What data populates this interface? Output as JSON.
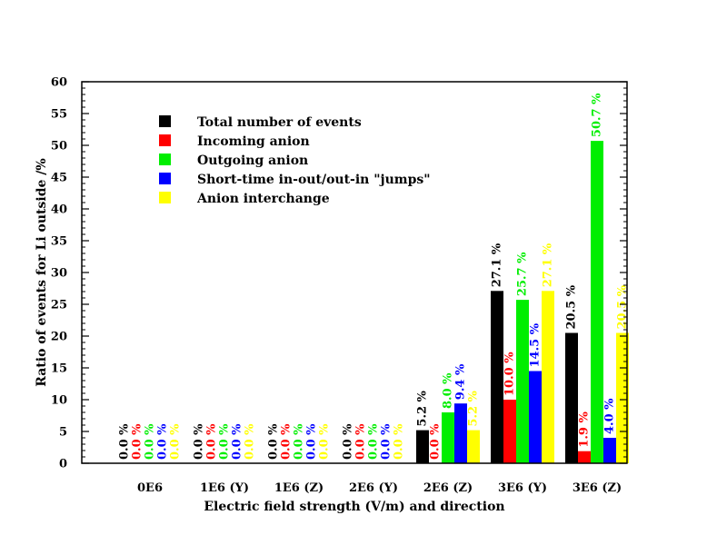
{
  "chart_data": {
    "type": "bar",
    "title": "",
    "xlabel": "Electric field strength (V/m) and direction",
    "ylabel": "Ratio of events for Li outside /%",
    "ylim": [
      0,
      60
    ],
    "yticks": [
      0,
      5,
      10,
      15,
      20,
      25,
      30,
      35,
      40,
      45,
      50,
      55,
      60
    ],
    "grid": false,
    "legend_position": "top-left",
    "categories": [
      "0E6",
      "1E6 (Y)",
      "1E6 (Z)",
      "2E6 (Y)",
      "2E6 (Z)",
      "3E6 (Y)",
      "3E6 (Z)"
    ],
    "series": [
      {
        "name": "Total number of events",
        "color": "#000000",
        "values": [
          0.0,
          0.0,
          0.0,
          0.0,
          5.2,
          27.1,
          20.5
        ],
        "labels": [
          "0.0 %",
          "0.0 %",
          "0.0 %",
          "0.0 %",
          "5.2 %",
          "27.1 %",
          "20.5 %"
        ]
      },
      {
        "name": "Incoming anion",
        "color": "#ff0000",
        "values": [
          0.0,
          0.0,
          0.0,
          0.0,
          0.0,
          10.0,
          1.9
        ],
        "labels": [
          "0.0 %",
          "0.0 %",
          "0.0 %",
          "0.0 %",
          "0.0 %",
          "10.0 %",
          "1.9 %"
        ]
      },
      {
        "name": "Outgoing anion",
        "color": "#00ee00",
        "values": [
          0.0,
          0.0,
          0.0,
          0.0,
          8.0,
          25.7,
          50.7
        ],
        "labels": [
          "0.0 %",
          "0.0 %",
          "0.0 %",
          "0.0 %",
          "8.0 %",
          "25.7 %",
          "50.7 %"
        ]
      },
      {
        "name": "Short-time in-out/out-in \"jumps\"",
        "color": "#0000ff",
        "values": [
          0.0,
          0.0,
          0.0,
          0.0,
          9.4,
          14.5,
          4.0
        ],
        "labels": [
          "0.0 %",
          "0.0 %",
          "0.0 %",
          "0.0 %",
          "9.4 %",
          "14.5 %",
          "4.0 %"
        ]
      },
      {
        "name": "Anion interchange",
        "color": "#ffff00",
        "values": [
          0.0,
          0.0,
          0.0,
          0.0,
          5.2,
          27.1,
          20.5
        ],
        "labels": [
          "0.0 %",
          "0.0 %",
          "0.0 %",
          "0.0 %",
          "5.2 %",
          "27.1 %",
          "20.5 %"
        ]
      }
    ]
  }
}
